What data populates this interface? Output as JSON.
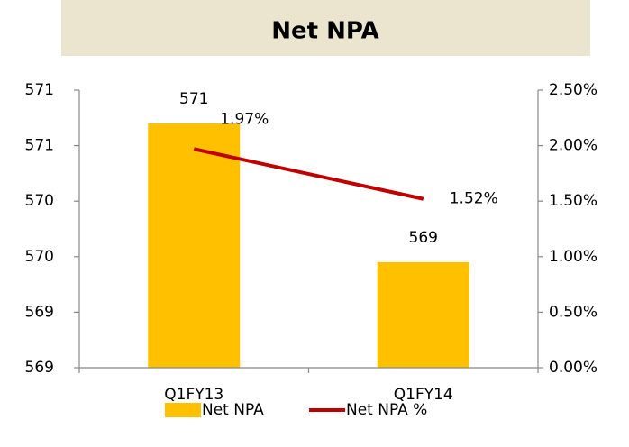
{
  "chart_data": {
    "type": "bar_line",
    "title": "Net NPA",
    "categories": [
      "Q1FY13",
      "Q1FY14"
    ],
    "series": [
      {
        "name": "Net NPA",
        "type": "bar",
        "color": "#ffc000",
        "values": [
          570.7,
          569.45
        ],
        "value_labels": [
          "571",
          "569"
        ]
      },
      {
        "name": "Net NPA %",
        "type": "line",
        "color": "#c00000",
        "axis": "y2",
        "values": [
          1.97,
          1.52
        ],
        "value_labels": [
          "1.97%",
          "1.52%"
        ]
      }
    ],
    "ylim": [
      568.5,
      571
    ],
    "yticks": [
      {
        "value": 568.5,
        "label": "569"
      },
      {
        "value": 569,
        "label": "569"
      },
      {
        "value": 569.5,
        "label": "570"
      },
      {
        "value": 570,
        "label": "570"
      },
      {
        "value": 570.5,
        "label": "571"
      },
      {
        "value": 571,
        "label": "571"
      }
    ],
    "y2lim": [
      0,
      2.5
    ],
    "y2ticks": [
      {
        "value": 0,
        "label": "0.00%"
      },
      {
        "value": 0.5,
        "label": "0.50%"
      },
      {
        "value": 1,
        "label": "1.00%"
      },
      {
        "value": 1.5,
        "label": "1.50%"
      },
      {
        "value": 2,
        "label": "2.00%"
      },
      {
        "value": 2.5,
        "label": "2.50%"
      }
    ],
    "legend": "bottom"
  }
}
